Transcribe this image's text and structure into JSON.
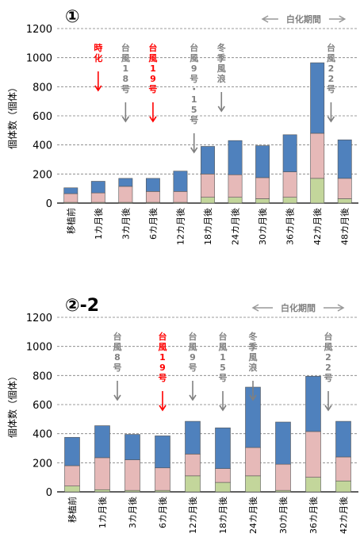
{
  "charts": [
    {
      "title": "①",
      "bleaching_period_label": "白化期間"
    },
    {
      "title": "②-2",
      "bleaching_period_label": "白化期間"
    }
  ],
  "chart_data": [
    {
      "type": "bar",
      "stacked": true,
      "title": "①",
      "ylabel": "個体数（個体）",
      "ylim": [
        0,
        1200
      ],
      "yticks": [
        0,
        200,
        400,
        600,
        800,
        1000,
        1200
      ],
      "grid": "horizontal dashed",
      "categories": [
        "移植前",
        "1カ月後",
        "3カ月後",
        "6カ月後",
        "12カ月後",
        "18カ月後",
        "24カ月後",
        "30カ月後",
        "36カ月後",
        "42カ月後",
        "48カ月後"
      ],
      "series": [
        {
          "color": "#C3D69B",
          "values": [
            5,
            5,
            5,
            5,
            5,
            40,
            40,
            30,
            40,
            170,
            30
          ]
        },
        {
          "color": "#E6B9B8",
          "values": [
            60,
            65,
            110,
            75,
            75,
            160,
            155,
            145,
            175,
            310,
            140
          ]
        },
        {
          "color": "#4F81BD",
          "values": [
            40,
            80,
            55,
            90,
            140,
            190,
            235,
            220,
            255,
            485,
            265
          ]
        }
      ],
      "annotations": [
        {
          "text": "時化",
          "color": "#FF0000",
          "x": 1.5
        },
        {
          "text": "台風18号",
          "color": "#808080",
          "x": 2.5
        },
        {
          "text": "台風19号",
          "color": "#FF0000",
          "x": 3.5
        },
        {
          "text": "台風9号・15号",
          "color": "#808080",
          "x": 5.0
        },
        {
          "text": "冬季風浪",
          "color": "#808080",
          "x": 6.0
        },
        {
          "text": "台風22号",
          "color": "#808080",
          "x": 10.0
        }
      ],
      "bleaching_period": {
        "label": "白化期間",
        "from": 7.5,
        "to": 10.5
      }
    },
    {
      "type": "bar",
      "stacked": true,
      "title": "②-2",
      "ylabel": "個体数（個体）",
      "ylim": [
        0,
        1200
      ],
      "yticks": [
        0,
        200,
        400,
        600,
        800,
        1000,
        1200
      ],
      "grid": "horizontal dashed",
      "categories": [
        "移植前",
        "1カ月後",
        "3カ月後",
        "6カ月後",
        "12カ月後",
        "18カ月後",
        "24カ月後",
        "30カ月後",
        "36カ月後",
        "42カ月後"
      ],
      "series": [
        {
          "color": "#C3D69B",
          "values": [
            40,
            15,
            10,
            10,
            110,
            65,
            110,
            10,
            100,
            75
          ]
        },
        {
          "color": "#E6B9B8",
          "values": [
            140,
            220,
            210,
            155,
            150,
            95,
            195,
            180,
            315,
            165
          ]
        },
        {
          "color": "#4F81BD",
          "values": [
            195,
            220,
            175,
            220,
            225,
            280,
            415,
            290,
            380,
            245
          ]
        }
      ],
      "annotations": [
        {
          "text": "台風8号",
          "color": "#808080",
          "x": 2.0
        },
        {
          "text": "台風19号",
          "color": "#FF0000",
          "x": 3.5
        },
        {
          "text": "台風9号",
          "color": "#808080",
          "x": 4.5
        },
        {
          "text": "台風15号",
          "color": "#808080",
          "x": 5.5
        },
        {
          "text": "冬季風浪",
          "color": "#808080",
          "x": 6.5
        },
        {
          "text": "台風22号",
          "color": "#808080",
          "x": 9.0
        }
      ],
      "bleaching_period": {
        "label": "白化期間",
        "from": 6.5,
        "to": 9.5
      }
    }
  ]
}
